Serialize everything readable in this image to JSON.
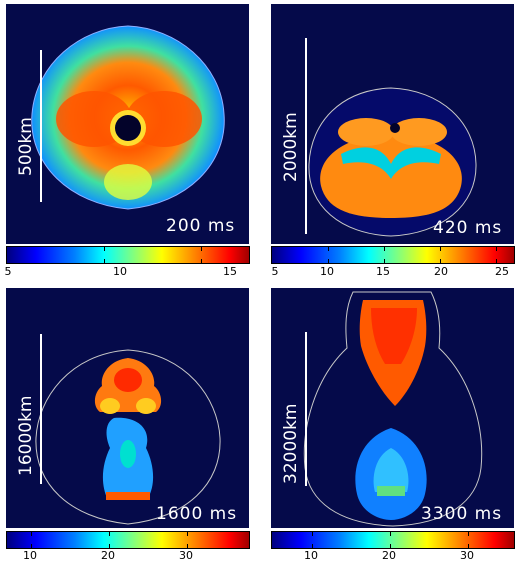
{
  "panels": [
    {
      "scale_label": "500km",
      "time_label": "200 ms"
    },
    {
      "scale_label": "2000km",
      "time_label": "420 ms"
    },
    {
      "scale_label": "16000km",
      "time_label": "1600 ms"
    },
    {
      "scale_label": "32000km",
      "time_label": "3300 ms"
    }
  ],
  "colorbars": [
    {
      "ticks": [
        "5",
        "10",
        "15"
      ]
    },
    {
      "ticks": [
        "5",
        "10",
        "15",
        "20",
        "25"
      ]
    },
    {
      "ticks": [
        "10",
        "20",
        "30"
      ]
    },
    {
      "ticks": [
        "10",
        "20",
        "30"
      ]
    }
  ],
  "colors": {
    "background": "#050a4a",
    "colormap": [
      "#00007f",
      "#0000ff",
      "#0080ff",
      "#00ffff",
      "#80ff80",
      "#ffff00",
      "#ff8000",
      "#ff0000",
      "#a00000"
    ]
  }
}
